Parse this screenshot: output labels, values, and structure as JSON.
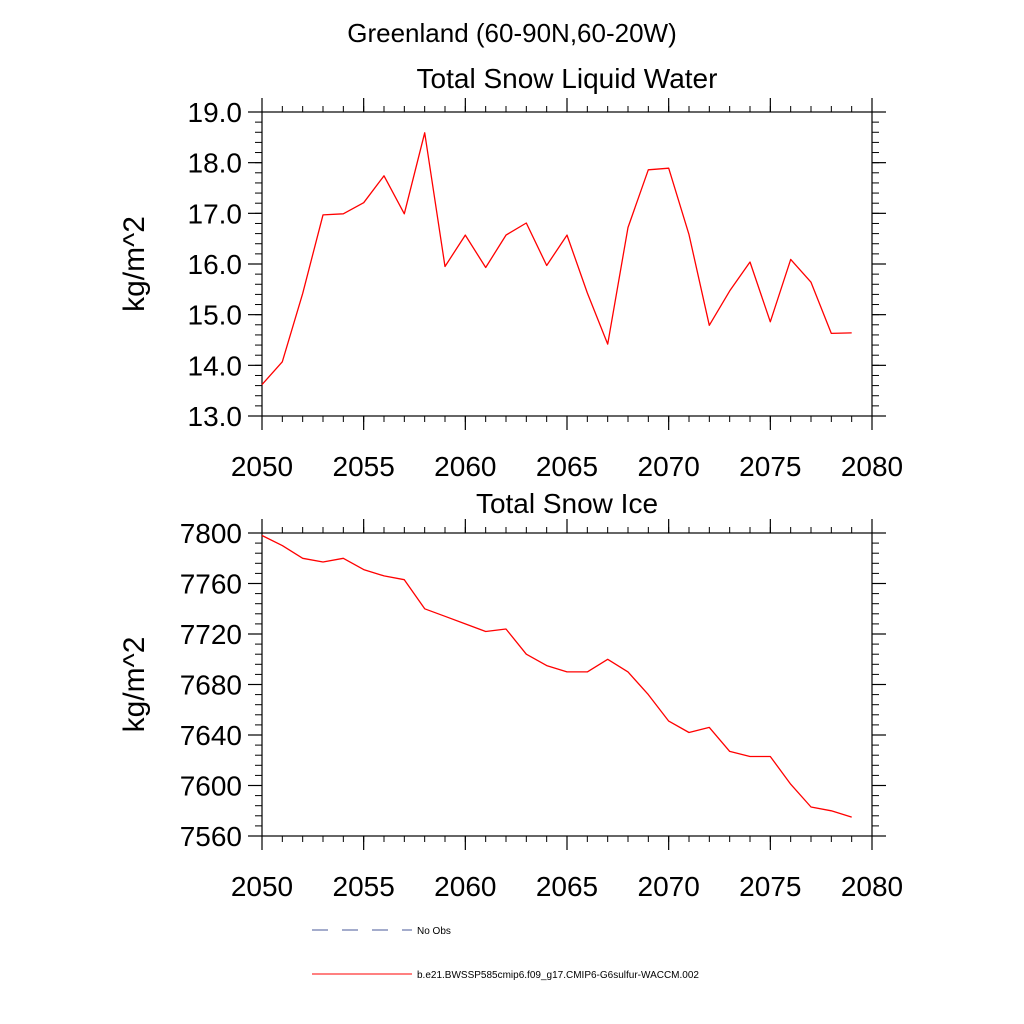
{
  "figure_title": "Greenland (60-90N,60-20W)",
  "chart_data": [
    {
      "type": "line",
      "title": "Total Snow Liquid Water",
      "xlabel": "",
      "ylabel": "kg/m^2",
      "xlim": [
        2050,
        2080
      ],
      "ylim": [
        13.0,
        19.0
      ],
      "xticks": [
        "2050",
        "2055",
        "2060",
        "2065",
        "2070",
        "2075",
        "2080"
      ],
      "yticks": [
        "13.0",
        "14.0",
        "15.0",
        "16.0",
        "17.0",
        "18.0",
        "19.0"
      ],
      "xtick_values": [
        2050,
        2055,
        2060,
        2065,
        2070,
        2075,
        2080
      ],
      "ytick_values": [
        13,
        14,
        15,
        16,
        17,
        18,
        19
      ],
      "grid": false,
      "series": [
        {
          "name": "b.e21.BWSSP585cmip6.f09_g17.CMIP6-G6sulfur-WACCM.002",
          "color": "#ff0000",
          "x": [
            2050,
            2051,
            2052,
            2053,
            2054,
            2055,
            2056,
            2057,
            2058,
            2059,
            2060,
            2061,
            2062,
            2063,
            2064,
            2065,
            2066,
            2067,
            2068,
            2069,
            2070,
            2071,
            2072,
            2073,
            2074,
            2075,
            2076,
            2077,
            2078,
            2079
          ],
          "y": [
            13.62,
            14.07,
            15.42,
            16.97,
            16.99,
            17.21,
            17.74,
            16.99,
            18.59,
            15.95,
            16.57,
            15.93,
            16.57,
            16.81,
            15.97,
            16.57,
            15.43,
            14.42,
            16.72,
            17.86,
            17.89,
            16.58,
            14.79,
            15.47,
            16.04,
            14.86,
            16.09,
            15.64,
            14.63,
            14.64
          ]
        }
      ]
    },
    {
      "type": "line",
      "title": "Total Snow Ice",
      "xlabel": "",
      "ylabel": "kg/m^2",
      "xlim": [
        2050,
        2080
      ],
      "ylim": [
        7560,
        7800
      ],
      "xticks": [
        "2050",
        "2055",
        "2060",
        "2065",
        "2070",
        "2075",
        "2080"
      ],
      "yticks": [
        "7560",
        "7600",
        "7640",
        "7680",
        "7720",
        "7760",
        "7800"
      ],
      "xtick_values": [
        2050,
        2055,
        2060,
        2065,
        2070,
        2075,
        2080
      ],
      "ytick_values": [
        7560,
        7600,
        7640,
        7680,
        7720,
        7760,
        7800
      ],
      "grid": false,
      "series": [
        {
          "name": "b.e21.BWSSP585cmip6.f09_g17.CMIP6-G6sulfur-WACCM.002",
          "color": "#ff0000",
          "x": [
            2050,
            2051,
            2052,
            2053,
            2054,
            2055,
            2056,
            2057,
            2058,
            2059,
            2060,
            2061,
            2062,
            2063,
            2064,
            2065,
            2066,
            2067,
            2068,
            2069,
            2070,
            2071,
            2072,
            2073,
            2074,
            2075,
            2076,
            2077,
            2078,
            2079
          ],
          "y": [
            7798,
            7790,
            7780,
            7777,
            7780,
            7771,
            7766,
            7763,
            7740,
            7734,
            7728,
            7722,
            7724,
            7704,
            7695,
            7690,
            7690,
            7700,
            7690,
            7672,
            7651,
            7642,
            7646,
            7627,
            7623,
            7623,
            7601,
            7583,
            7580,
            7575
          ]
        }
      ]
    }
  ],
  "legend": {
    "placement": "bottom",
    "entries": [
      {
        "label": "No Obs",
        "color": "#4a5a9a",
        "style": "dashed"
      },
      {
        "label": "b.e21.BWSSP585cmip6.f09_g17.CMIP6-G6sulfur-WACCM.002",
        "color": "#ff0000",
        "style": "solid"
      }
    ]
  }
}
